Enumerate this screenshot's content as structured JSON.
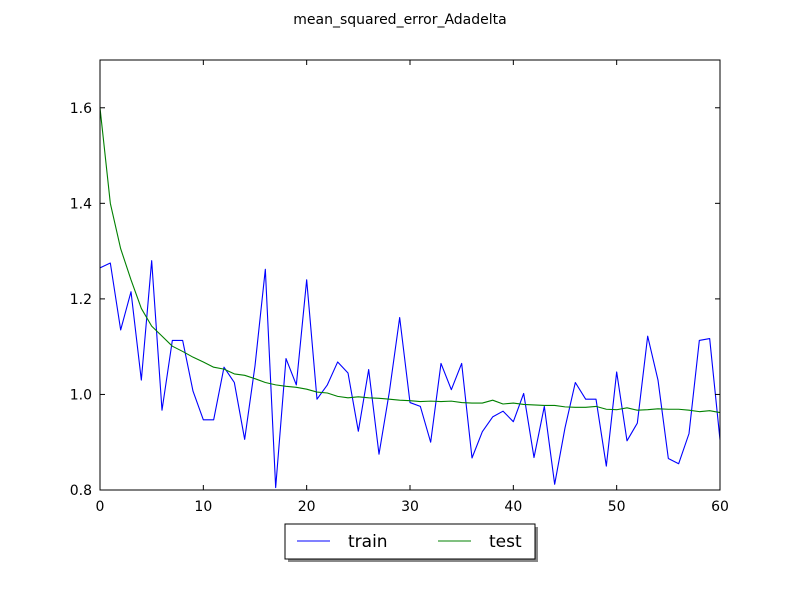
{
  "chart_data": {
    "type": "line",
    "title": "mean_squared_error_Adadelta",
    "xlabel": "",
    "ylabel": "",
    "xlim": [
      0,
      60
    ],
    "ylim": [
      0.8,
      1.7
    ],
    "xticks": [
      0,
      10,
      20,
      30,
      40,
      50,
      60
    ],
    "yticks": [
      0.8,
      1.0,
      1.2,
      1.4,
      1.6
    ],
    "xtick_labels": [
      "0",
      "10",
      "20",
      "30",
      "40",
      "50",
      "60"
    ],
    "ytick_labels": [
      "0.8",
      "1.0",
      "1.2",
      "1.4",
      "1.6"
    ],
    "grid": false,
    "legend_position": "bottom-center",
    "x": [
      0,
      1,
      2,
      3,
      4,
      5,
      6,
      7,
      8,
      9,
      10,
      11,
      12,
      13,
      14,
      15,
      16,
      17,
      18,
      19,
      20,
      21,
      22,
      23,
      24,
      25,
      26,
      27,
      28,
      29,
      30,
      31,
      32,
      33,
      34,
      35,
      36,
      37,
      38,
      39,
      40,
      41,
      42,
      43,
      44,
      45,
      46,
      47,
      48,
      49,
      50,
      51,
      52,
      53,
      54,
      55,
      56,
      57,
      58,
      59,
      60
    ],
    "series": [
      {
        "name": "train",
        "color": "#0000ff",
        "values": [
          1.265,
          1.275,
          1.135,
          1.215,
          1.03,
          1.28,
          0.967,
          1.113,
          1.113,
          1.007,
          0.947,
          0.947,
          1.057,
          1.025,
          0.906,
          1.06,
          1.262,
          0.805,
          1.075,
          1.02,
          1.24,
          0.99,
          1.02,
          1.068,
          1.045,
          0.923,
          1.052,
          0.875,
          1.005,
          1.161,
          0.983,
          0.975,
          0.9,
          1.065,
          1.01,
          1.065,
          0.867,
          0.922,
          0.953,
          0.965,
          0.943,
          1.002,
          0.868,
          0.975,
          0.812,
          0.93,
          1.025,
          0.99,
          0.99,
          0.85,
          1.047,
          0.903,
          0.94,
          1.122,
          1.03,
          0.866,
          0.855,
          0.918,
          1.113,
          1.117,
          0.905
        ]
      },
      {
        "name": "test",
        "color": "#008000",
        "values": [
          1.6,
          1.4,
          1.305,
          1.24,
          1.18,
          1.143,
          1.122,
          1.101,
          1.09,
          1.078,
          1.068,
          1.057,
          1.053,
          1.043,
          1.04,
          1.033,
          1.025,
          1.02,
          1.017,
          1.015,
          1.011,
          1.005,
          1.003,
          0.996,
          0.993,
          0.995,
          0.993,
          0.992,
          0.99,
          0.988,
          0.987,
          0.985,
          0.986,
          0.985,
          0.986,
          0.983,
          0.982,
          0.982,
          0.988,
          0.98,
          0.982,
          0.979,
          0.978,
          0.977,
          0.977,
          0.974,
          0.973,
          0.973,
          0.975,
          0.969,
          0.968,
          0.972,
          0.967,
          0.968,
          0.97,
          0.969,
          0.969,
          0.967,
          0.964,
          0.966,
          0.962
        ]
      }
    ]
  }
}
